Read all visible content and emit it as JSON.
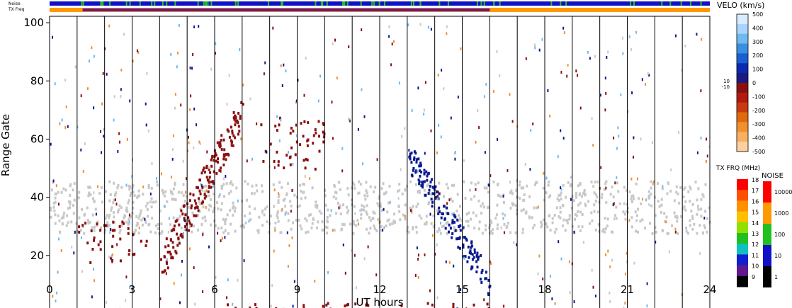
{
  "chart_data": {
    "type": "heatmap",
    "title": "",
    "xlabel": "UT hours",
    "ylabel": "Range Gate",
    "xlim": [
      0,
      24
    ],
    "ylim": [
      0,
      101
    ],
    "x_ticks": [
      "0",
      "3",
      "6",
      "9",
      "12",
      "15",
      "18",
      "21",
      "24"
    ],
    "x_tick_values": [
      0,
      3,
      6,
      9,
      12,
      15,
      18,
      21,
      24
    ],
    "y_ticks": [
      "0",
      "20",
      "40",
      "60",
      "80",
      "100"
    ],
    "y_tick_values": [
      0,
      20,
      40,
      60,
      80,
      100
    ],
    "scan_boundaries_hours": [
      1,
      2,
      3,
      4,
      5,
      6,
      7,
      8,
      9,
      10,
      11,
      12,
      13,
      14,
      15,
      16,
      17,
      18,
      19,
      20,
      21,
      22,
      23,
      24
    ],
    "top_strips": {
      "noise_label": "Noise",
      "txfreq_label": "TX Freq",
      "noise_color": "#1010c8",
      "noise_marks_color": "#20c020",
      "txfreq_segments": [
        {
          "from": 0,
          "to": 16,
          "color": "#ff9900"
        },
        {
          "from": 16,
          "to": 24,
          "color": "#ff9900"
        }
      ],
      "txfreq_bar_color": "#5a1aa0",
      "txfreq_bar_extent": [
        1.2,
        16
      ]
    },
    "velocity_scale": {
      "title": "VELO (km/s)",
      "labels": [
        "500",
        "400",
        "300",
        "200",
        "100",
        "0",
        "-100",
        "-200",
        "-300",
        "-400",
        "-500"
      ],
      "side_labels": [
        "10",
        "-10"
      ],
      "colors": [
        "#d8ecff",
        "#a8d4ff",
        "#70b8f0",
        "#3a8fe0",
        "#1a5fd0",
        "#0a2ab0",
        "#1a1a80",
        "#8a1010",
        "#b01a10",
        "#c83a10",
        "#e06a10",
        "#f09030",
        "#f8b060",
        "#fcd0a0"
      ]
    },
    "txfreq_scale": {
      "title": "TX FRQ (MHz)",
      "labels": [
        "18",
        "17",
        "16",
        "15",
        "14",
        "13",
        "12",
        "11",
        "10",
        "9"
      ],
      "colors": [
        "#ff0000",
        "#ff5000",
        "#ff9000",
        "#ffc000",
        "#90e000",
        "#20c020",
        "#10c0c0",
        "#1020d0",
        "#601890",
        "#000000"
      ]
    },
    "noise_scale": {
      "title": "NOISE",
      "labels": [
        "10000",
        "1000",
        "100",
        "10",
        "1"
      ],
      "colors": [
        "#ff0000",
        "#ff9900",
        "#20c020",
        "#1010c8",
        "#000000"
      ]
    },
    "features": [
      {
        "name": "ground scatter band",
        "color": "#c8c8c8",
        "from": 0,
        "to": 24,
        "gate_low": 28,
        "gate_high": 46
      },
      {
        "name": "early positive velocity band",
        "color": "#8a1010",
        "from": 1,
        "to": 3.5,
        "gate_low": 18,
        "gate_high": 32
      },
      {
        "name": "morning arc",
        "color": "#8a1010",
        "from": 4,
        "to": 7,
        "gate_low": 17,
        "gate_high": 70
      },
      {
        "name": "midday patch",
        "color": "#8a1010",
        "from": 7.5,
        "to": 10,
        "gate_low": 50,
        "gate_high": 68
      },
      {
        "name": "negative velocity descent",
        "color": "#0a1a90",
        "from": 13,
        "to": 16,
        "gate_low": 10,
        "gate_high": 55
      },
      {
        "name": "near range scatter",
        "color": "#8a1010",
        "from": 6,
        "to": 16,
        "gate_low": 0,
        "gate_high": 4
      }
    ]
  }
}
